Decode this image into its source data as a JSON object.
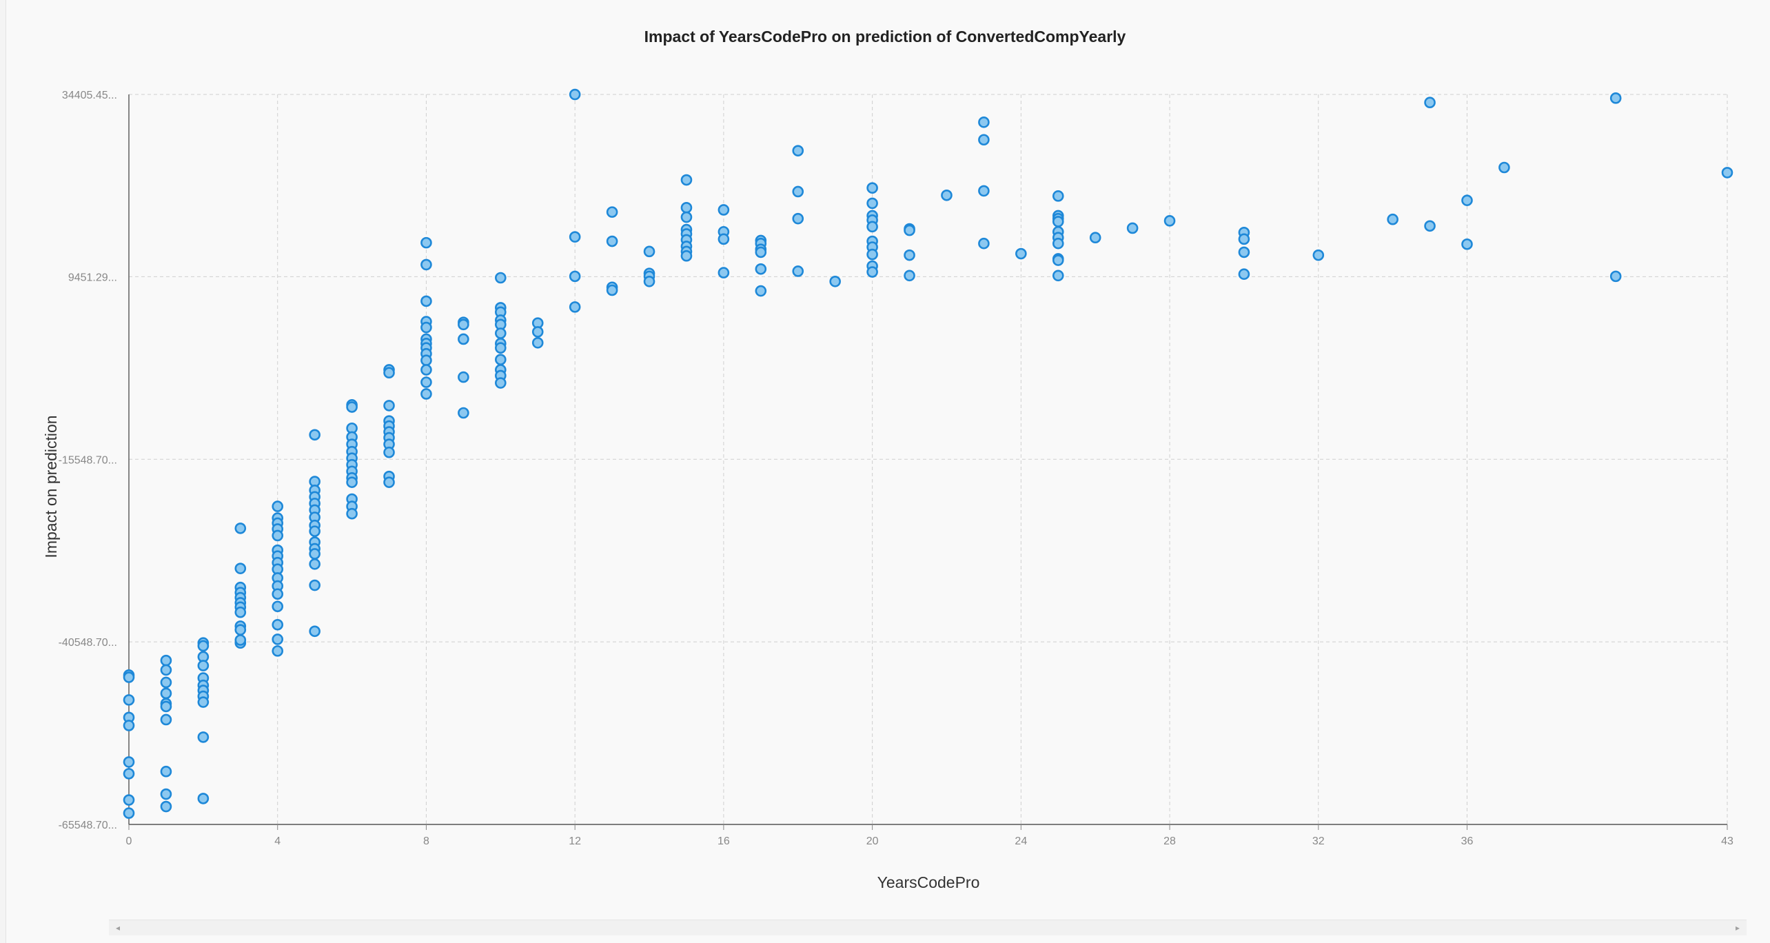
{
  "chart_data": {
    "type": "scatter",
    "title": "Impact of YearsCodePro on prediction of ConvertedCompYearly",
    "xlabel": "YearsCodePro",
    "ylabel": "Impact on prediction",
    "xlim": [
      0,
      43
    ],
    "ylim": [
      -65548.7,
      34405.45
    ],
    "x_ticks": [
      0,
      4,
      8,
      12,
      16,
      20,
      24,
      28,
      32,
      36,
      43
    ],
    "y_ticks": [
      {
        "value": 34405.45,
        "label": "34405.45..."
      },
      {
        "value": 9451.29,
        "label": "9451.29..."
      },
      {
        "value": -15548.7,
        "label": "-15548.70..."
      },
      {
        "value": -40548.7,
        "label": "-40548.70..."
      },
      {
        "value": -65548.7,
        "label": "-65548.70..."
      }
    ],
    "grid": true,
    "points": [
      [
        0,
        -45100
      ],
      [
        0,
        -45400
      ],
      [
        0,
        -48500
      ],
      [
        0,
        -50900
      ],
      [
        0,
        -57000
      ],
      [
        0,
        -52000
      ],
      [
        0,
        -58600
      ],
      [
        0,
        -62200
      ],
      [
        0,
        -64000
      ],
      [
        1,
        -43100
      ],
      [
        1,
        -44400
      ],
      [
        1,
        -46100
      ],
      [
        1,
        -47600
      ],
      [
        1,
        -49000
      ],
      [
        1,
        -49400
      ],
      [
        1,
        -51200
      ],
      [
        1,
        -58300
      ],
      [
        1,
        -61400
      ],
      [
        1,
        -63100
      ],
      [
        2,
        -40700
      ],
      [
        2,
        -41100
      ],
      [
        2,
        -42600
      ],
      [
        2,
        -43800
      ],
      [
        2,
        -45500
      ],
      [
        2,
        -46500
      ],
      [
        2,
        -47200
      ],
      [
        2,
        -48000
      ],
      [
        2,
        -48800
      ],
      [
        2,
        -53600
      ],
      [
        2,
        -62000
      ],
      [
        3,
        -25000
      ],
      [
        3,
        -30500
      ],
      [
        3,
        -33100
      ],
      [
        3,
        -33800
      ],
      [
        3,
        -34500
      ],
      [
        3,
        -35200
      ],
      [
        3,
        -35800
      ],
      [
        3,
        -36500
      ],
      [
        3,
        -38400
      ],
      [
        3,
        -40700
      ],
      [
        3,
        -38900
      ],
      [
        3,
        -40300
      ],
      [
        4,
        -22000
      ],
      [
        4,
        -23600
      ],
      [
        4,
        -24300
      ],
      [
        4,
        -25100
      ],
      [
        4,
        -26000
      ],
      [
        4,
        -28000
      ],
      [
        4,
        -28800
      ],
      [
        4,
        -29700
      ],
      [
        4,
        -30600
      ],
      [
        4,
        -31800
      ],
      [
        4,
        -32900
      ],
      [
        4,
        -34000
      ],
      [
        4,
        -35700
      ],
      [
        4,
        -38200
      ],
      [
        4,
        -40200
      ],
      [
        4,
        -41800
      ],
      [
        5,
        -12200
      ],
      [
        5,
        -18600
      ],
      [
        5,
        -19800
      ],
      [
        5,
        -20700
      ],
      [
        5,
        -21600
      ],
      [
        5,
        -22500
      ],
      [
        5,
        -23500
      ],
      [
        5,
        -24600
      ],
      [
        5,
        -25400
      ],
      [
        5,
        -26900
      ],
      [
        5,
        -27800
      ],
      [
        5,
        -28500
      ],
      [
        5,
        -29900
      ],
      [
        5,
        -32800
      ],
      [
        5,
        -39100
      ],
      [
        6,
        -8100
      ],
      [
        6,
        -8400
      ],
      [
        6,
        -11300
      ],
      [
        6,
        -12500
      ],
      [
        6,
        -13500
      ],
      [
        6,
        -14500
      ],
      [
        6,
        -15400
      ],
      [
        6,
        -16300
      ],
      [
        6,
        -17200
      ],
      [
        6,
        -18100
      ],
      [
        6,
        -18700
      ],
      [
        6,
        -21000
      ],
      [
        6,
        -22000
      ],
      [
        6,
        -23000
      ],
      [
        7,
        -3300
      ],
      [
        7,
        -3700
      ],
      [
        7,
        -8200
      ],
      [
        7,
        -10300
      ],
      [
        7,
        -11000
      ],
      [
        7,
        -11800
      ],
      [
        7,
        -12600
      ],
      [
        7,
        -13500
      ],
      [
        7,
        -14600
      ],
      [
        7,
        -17900
      ],
      [
        7,
        -18700
      ],
      [
        8,
        14100
      ],
      [
        8,
        11100
      ],
      [
        8,
        6100
      ],
      [
        8,
        3300
      ],
      [
        8,
        2500
      ],
      [
        8,
        900
      ],
      [
        8,
        300
      ],
      [
        8,
        -300
      ],
      [
        8,
        -1100
      ],
      [
        8,
        -2000
      ],
      [
        8,
        -3300
      ],
      [
        8,
        -5000
      ],
      [
        8,
        -6600
      ],
      [
        9,
        3200
      ],
      [
        9,
        2900
      ],
      [
        9,
        900
      ],
      [
        9,
        -4300
      ],
      [
        9,
        -9200
      ],
      [
        10,
        9300
      ],
      [
        10,
        5200
      ],
      [
        10,
        4600
      ],
      [
        10,
        3500
      ],
      [
        10,
        2900
      ],
      [
        10,
        1700
      ],
      [
        10,
        300
      ],
      [
        10,
        -300
      ],
      [
        10,
        -1900
      ],
      [
        10,
        -3300
      ],
      [
        10,
        -4100
      ],
      [
        10,
        -5100
      ],
      [
        11,
        3100
      ],
      [
        11,
        1900
      ],
      [
        11,
        400
      ],
      [
        12,
        34400
      ],
      [
        12,
        14900
      ],
      [
        12,
        9500
      ],
      [
        12,
        5300
      ],
      [
        13,
        18300
      ],
      [
        13,
        14300
      ],
      [
        13,
        8000
      ],
      [
        13,
        7600
      ],
      [
        14,
        12900
      ],
      [
        14,
        9900
      ],
      [
        14,
        9500
      ],
      [
        14,
        8800
      ],
      [
        15,
        22700
      ],
      [
        15,
        18900
      ],
      [
        15,
        17600
      ],
      [
        15,
        15900
      ],
      [
        15,
        15300
      ],
      [
        15,
        14500
      ],
      [
        15,
        13600
      ],
      [
        15,
        12900
      ],
      [
        15,
        12300
      ],
      [
        16,
        18600
      ],
      [
        16,
        15600
      ],
      [
        16,
        14600
      ],
      [
        16,
        10000
      ],
      [
        17,
        14400
      ],
      [
        17,
        14000
      ],
      [
        17,
        13200
      ],
      [
        17,
        12800
      ],
      [
        17,
        10500
      ],
      [
        17,
        7500
      ],
      [
        18,
        26700
      ],
      [
        18,
        21100
      ],
      [
        18,
        17400
      ],
      [
        18,
        10200
      ],
      [
        19,
        8800
      ],
      [
        20,
        21600
      ],
      [
        20,
        19500
      ],
      [
        20,
        17800
      ],
      [
        20,
        17200
      ],
      [
        20,
        16300
      ],
      [
        20,
        14300
      ],
      [
        20,
        13500
      ],
      [
        20,
        12500
      ],
      [
        20,
        10900
      ],
      [
        20,
        10100
      ],
      [
        21,
        16000
      ],
      [
        21,
        15800
      ],
      [
        21,
        12400
      ],
      [
        21,
        9600
      ],
      [
        22,
        20600
      ],
      [
        23,
        30600
      ],
      [
        23,
        28200
      ],
      [
        23,
        21200
      ],
      [
        23,
        14000
      ],
      [
        24,
        12600
      ],
      [
        25,
        20500
      ],
      [
        25,
        17800
      ],
      [
        25,
        17400
      ],
      [
        25,
        17000
      ],
      [
        25,
        15600
      ],
      [
        25,
        14800
      ],
      [
        25,
        14000
      ],
      [
        25,
        11900
      ],
      [
        25,
        11700
      ],
      [
        25,
        9600
      ],
      [
        26,
        14800
      ],
      [
        27,
        16100
      ],
      [
        28,
        17100
      ],
      [
        30,
        15500
      ],
      [
        30,
        14600
      ],
      [
        30,
        12800
      ],
      [
        30,
        9800
      ],
      [
        32,
        12400
      ],
      [
        34,
        17300
      ],
      [
        35,
        33300
      ],
      [
        35,
        16400
      ],
      [
        36,
        19900
      ],
      [
        36,
        13900
      ],
      [
        37,
        24400
      ],
      [
        40,
        33900
      ],
      [
        40,
        9500
      ],
      [
        43,
        23700
      ]
    ]
  },
  "scrollbar": {
    "left_arrow": "◂",
    "right_arrow": "▸"
  }
}
